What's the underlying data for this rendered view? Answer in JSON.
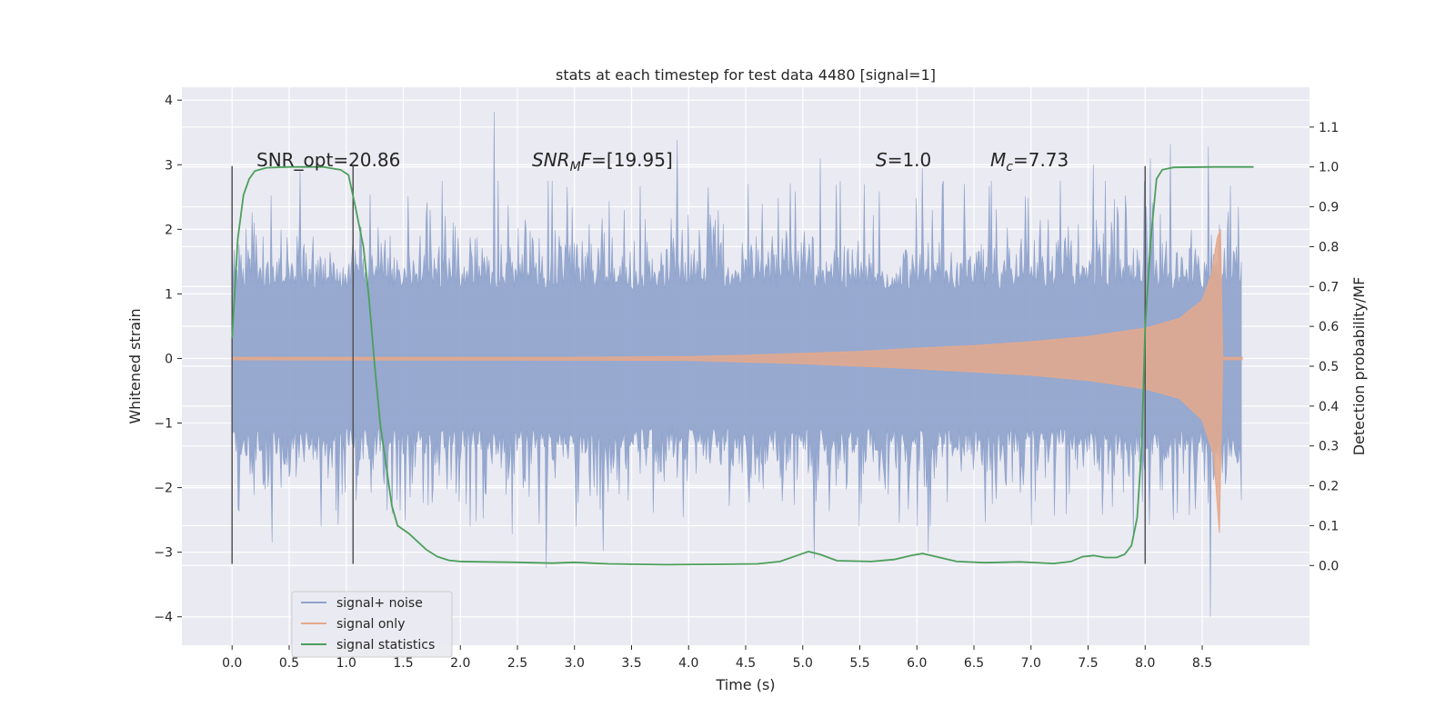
{
  "chart_data": {
    "type": "line",
    "title": "stats at each timestep for test data 4480 [signal=1]",
    "xlabel": "Time (s)",
    "ylabel": "Whitened strain",
    "y2label": "Detection probability/MF",
    "xlim": [
      -0.44,
      9.44
    ],
    "ylim": [
      -4.44,
      4.2
    ],
    "y2lim": [
      -0.2,
      1.2
    ],
    "grid": true,
    "legend_position": "lower-left",
    "x_ticks": [
      0.0,
      0.5,
      1.0,
      1.5,
      2.0,
      2.5,
      3.0,
      3.5,
      4.0,
      4.5,
      5.0,
      5.5,
      6.0,
      6.5,
      7.0,
      7.5,
      8.0,
      8.5
    ],
    "x_tick_labels": [
      "0.0",
      "0.5",
      "1.0",
      "1.5",
      "2.0",
      "2.5",
      "3.0",
      "3.5",
      "4.0",
      "4.5",
      "5.0",
      "5.5",
      "6.0",
      "6.5",
      "7.0",
      "7.5",
      "8.0",
      "8.5"
    ],
    "y_ticks": [
      4,
      3,
      2,
      1,
      0,
      -1,
      -2,
      -3,
      -4
    ],
    "y_tick_labels": [
      "4",
      "3",
      "2",
      "1",
      "0",
      "−1",
      "−2",
      "−3",
      "−4"
    ],
    "y2_ticks": [
      1.1,
      1.0,
      0.9,
      0.8,
      0.7,
      0.6,
      0.5,
      0.4,
      0.3,
      0.2,
      0.1,
      0.0
    ],
    "y2_tick_labels": [
      "1.1",
      "1.0",
      "0.9",
      "0.8",
      "0.7",
      "0.6",
      "0.5",
      "0.4",
      "0.3",
      "0.2",
      "0.1",
      "0.0"
    ],
    "annotations": {
      "snr_opt": "SNR_opt=20.86",
      "snr_mf_main": "SNR",
      "snr_mf_sub": "M",
      "snr_mf_tail": "F",
      "snr_mf_value": "=[19.95]",
      "s_symbol": "S",
      "s_value": "=1.0",
      "mc_symbol": "M",
      "mc_sub": "c",
      "mc_value": "=7.73"
    },
    "vertical_markers": [
      {
        "x": 0.0,
        "ymin": -3.18,
        "ymax": 2.98
      },
      {
        "x": 1.06,
        "ymin": -3.18,
        "ymax": 2.98
      },
      {
        "x": 8.0,
        "ymin": -3.18,
        "ymax": 2.98
      }
    ],
    "noise": {
      "x_start": 0.0,
      "x_end": 8.85,
      "band_amplitude": 1.25,
      "peaks": [
        {
          "x": 2.3,
          "y": 3.82
        },
        {
          "x": 3.9,
          "y": 3.38
        },
        {
          "x": 8.05,
          "y": 3.1
        },
        {
          "x": 8.22,
          "y": 3.32
        },
        {
          "x": 8.55,
          "y": 3.28
        },
        {
          "x": 5.15,
          "y": 3.1
        },
        {
          "x": 6.05,
          "y": 2.95
        },
        {
          "x": 7.55,
          "y": 3.0
        },
        {
          "x": 0.6,
          "y": 2.9
        },
        {
          "x": 2.75,
          "y": -3.25
        },
        {
          "x": 8.57,
          "y": -4.0
        },
        {
          "x": 5.1,
          "y": -3.1
        },
        {
          "x": 6.1,
          "y": -3.0
        },
        {
          "x": 0.35,
          "y": -2.85
        },
        {
          "x": 3.25,
          "y": -2.98
        },
        {
          "x": 2.45,
          "y": -2.72
        },
        {
          "x": 7.9,
          "y": -2.8
        }
      ]
    },
    "series": [
      {
        "name": "signal+ noise",
        "color": "#8fa3cc"
      },
      {
        "name": "signal only",
        "color": "#e4a98c",
        "envelope": [
          [
            0.0,
            0.02
          ],
          [
            1.0,
            0.02
          ],
          [
            2.0,
            0.02
          ],
          [
            3.0,
            0.02
          ],
          [
            4.0,
            0.03
          ],
          [
            4.5,
            0.05
          ],
          [
            5.0,
            0.08
          ],
          [
            5.5,
            0.11
          ],
          [
            6.0,
            0.16
          ],
          [
            6.5,
            0.2
          ],
          [
            7.0,
            0.26
          ],
          [
            7.5,
            0.34
          ],
          [
            8.0,
            0.47
          ],
          [
            8.3,
            0.62
          ],
          [
            8.5,
            0.9
          ],
          [
            8.58,
            1.3
          ],
          [
            8.63,
            1.85
          ],
          [
            8.66,
            2.0
          ],
          [
            8.68,
            0.02
          ],
          [
            8.85,
            0.02
          ]
        ],
        "lower_envelope": [
          [
            0.0,
            -0.02
          ],
          [
            4.0,
            -0.03
          ],
          [
            5.0,
            -0.08
          ],
          [
            6.0,
            -0.16
          ],
          [
            7.0,
            -0.26
          ],
          [
            7.5,
            -0.34
          ],
          [
            8.0,
            -0.47
          ],
          [
            8.3,
            -0.62
          ],
          [
            8.5,
            -0.95
          ],
          [
            8.6,
            -1.5
          ],
          [
            8.65,
            -2.7
          ],
          [
            8.68,
            -0.02
          ],
          [
            8.85,
            -0.02
          ]
        ]
      },
      {
        "name": "signal statistics",
        "color": "#4c9f5b",
        "axis": "right",
        "points": [
          [
            0.0,
            0.57
          ],
          [
            0.05,
            0.82
          ],
          [
            0.1,
            0.93
          ],
          [
            0.15,
            0.97
          ],
          [
            0.2,
            0.99
          ],
          [
            0.3,
            0.998
          ],
          [
            0.5,
            1.0
          ],
          [
            0.8,
            1.0
          ],
          [
            0.95,
            0.993
          ],
          [
            1.02,
            0.98
          ],
          [
            1.08,
            0.9
          ],
          [
            1.15,
            0.8
          ],
          [
            1.2,
            0.67
          ],
          [
            1.25,
            0.5
          ],
          [
            1.3,
            0.35
          ],
          [
            1.35,
            0.25
          ],
          [
            1.4,
            0.15
          ],
          [
            1.45,
            0.1
          ],
          [
            1.55,
            0.08
          ],
          [
            1.7,
            0.04
          ],
          [
            1.8,
            0.022
          ],
          [
            1.9,
            0.013
          ],
          [
            2.0,
            0.01
          ],
          [
            2.5,
            0.008
          ],
          [
            2.8,
            0.006
          ],
          [
            3.0,
            0.008
          ],
          [
            3.3,
            0.004
          ],
          [
            3.8,
            0.002
          ],
          [
            4.2,
            0.003
          ],
          [
            4.6,
            0.004
          ],
          [
            4.8,
            0.01
          ],
          [
            4.95,
            0.025
          ],
          [
            5.05,
            0.035
          ],
          [
            5.15,
            0.028
          ],
          [
            5.3,
            0.012
          ],
          [
            5.6,
            0.01
          ],
          [
            5.8,
            0.015
          ],
          [
            5.95,
            0.025
          ],
          [
            6.05,
            0.03
          ],
          [
            6.2,
            0.02
          ],
          [
            6.35,
            0.01
          ],
          [
            6.6,
            0.007
          ],
          [
            6.9,
            0.009
          ],
          [
            7.2,
            0.005
          ],
          [
            7.35,
            0.01
          ],
          [
            7.45,
            0.022
          ],
          [
            7.55,
            0.025
          ],
          [
            7.65,
            0.02
          ],
          [
            7.75,
            0.02
          ],
          [
            7.82,
            0.028
          ],
          [
            7.88,
            0.05
          ],
          [
            7.93,
            0.12
          ],
          [
            7.97,
            0.3
          ],
          [
            8.0,
            0.6
          ],
          [
            8.05,
            0.82
          ],
          [
            8.1,
            0.97
          ],
          [
            8.15,
            0.993
          ],
          [
            8.25,
            0.999
          ],
          [
            8.6,
            1.0
          ],
          [
            8.95,
            1.0
          ]
        ]
      }
    ]
  }
}
